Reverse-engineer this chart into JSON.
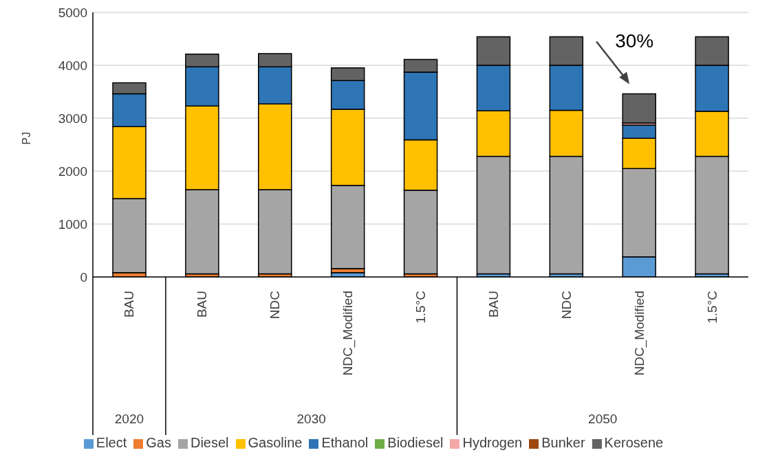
{
  "chart_data": {
    "type": "bar",
    "stacked": true,
    "ylabel": "PJ",
    "categories": [
      "BAU",
      "BAU",
      "NDC",
      "NDC_Modified",
      "1.5°C",
      "BAU",
      "NDC",
      "NDC_Modified",
      "1.5°C"
    ],
    "series": [
      {
        "name": "Elect",
        "color": "#5b9bd5",
        "values": [
          0,
          0,
          0,
          80,
          0,
          60,
          60,
          380,
          60
        ]
      },
      {
        "name": "Gas",
        "color": "#ed7d31",
        "values": [
          80,
          60,
          60,
          80,
          60,
          0,
          0,
          0,
          0
        ]
      },
      {
        "name": "Diesel",
        "color": "#a5a5a5",
        "values": [
          1400,
          1590,
          1590,
          1570,
          1580,
          2220,
          2220,
          1670,
          2220
        ]
      },
      {
        "name": "Gasoline",
        "color": "#ffc000",
        "values": [
          1360,
          1580,
          1620,
          1440,
          950,
          860,
          870,
          570,
          850
        ]
      },
      {
        "name": "Ethanol",
        "color": "#2e75b6",
        "values": [
          620,
          740,
          700,
          540,
          1280,
          860,
          850,
          250,
          870
        ]
      },
      {
        "name": "Biodiesel",
        "color": "#70ad47",
        "values": [
          0,
          0,
          0,
          0,
          0,
          0,
          0,
          0,
          0
        ]
      },
      {
        "name": "Hydrogen",
        "color": "#f4a7a7",
        "values": [
          0,
          0,
          0,
          0,
          0,
          0,
          0,
          40,
          0
        ]
      },
      {
        "name": "Bunker",
        "color": "#9e480e",
        "values": [
          0,
          0,
          0,
          0,
          0,
          0,
          0,
          0,
          0
        ]
      },
      {
        "name": "Kerosene",
        "color": "#636363",
        "values": [
          210,
          240,
          250,
          240,
          240,
          540,
          540,
          550,
          540
        ]
      }
    ],
    "ylim": [
      0,
      5000
    ],
    "yticks": [
      0,
      1000,
      2000,
      3000,
      4000,
      5000
    ],
    "grid": "y",
    "legend": "bottom",
    "annotations": [
      "2020",
      "2030",
      "2050",
      "30%"
    ]
  }
}
